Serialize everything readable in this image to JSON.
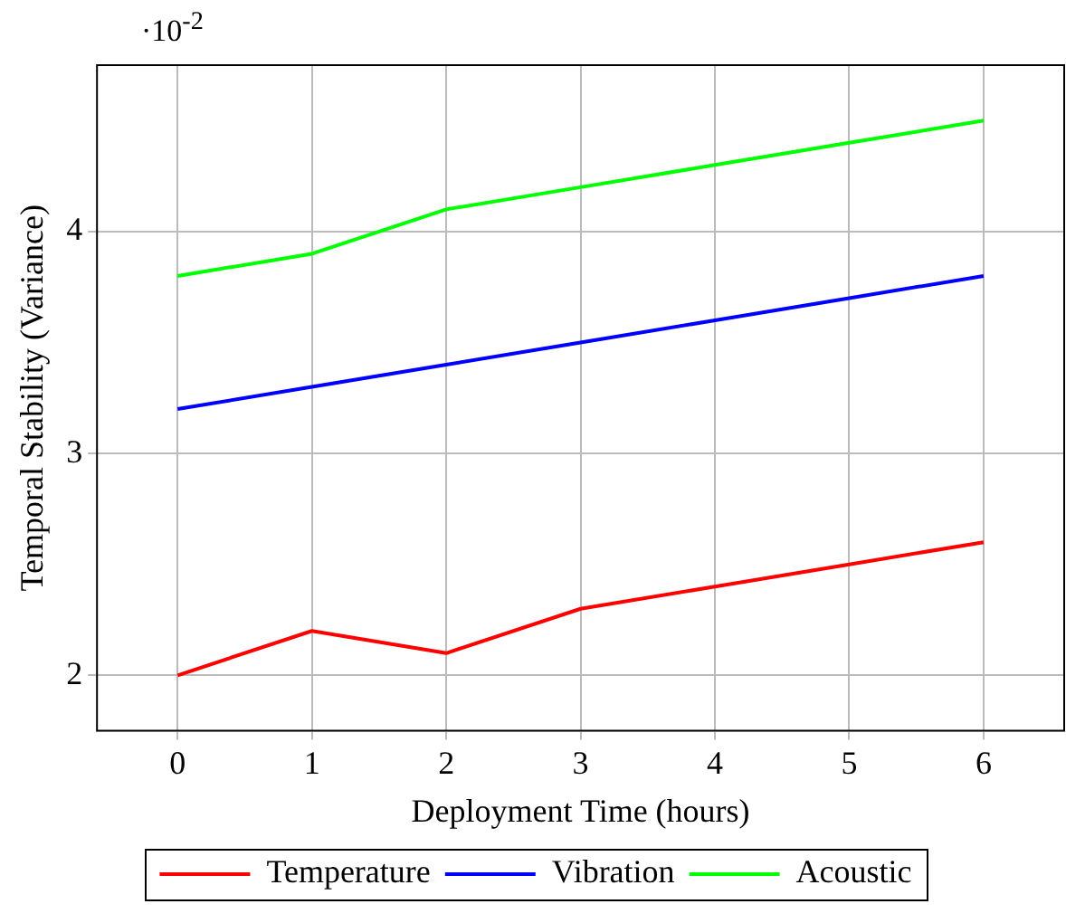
{
  "chart_data": {
    "type": "line",
    "xlabel": "Deployment Time (hours)",
    "ylabel": "Temporal Stability (Variance)",
    "annotations": [
      "·10$^{-2}$"
    ],
    "x": [
      0,
      1,
      2,
      3,
      4,
      5,
      6
    ],
    "series": [
      {
        "name": "Temperature",
        "color": "#ff0000",
        "values": [
          2.0,
          2.2,
          2.1,
          2.3,
          2.4,
          2.5,
          2.6
        ]
      },
      {
        "name": "Vibration",
        "color": "#0000ff",
        "values": [
          3.2,
          3.3,
          3.4,
          3.5,
          3.6,
          3.7,
          3.8
        ]
      },
      {
        "name": "Acoustic",
        "color": "#00ff00",
        "values": [
          3.8,
          3.9,
          4.1,
          4.2,
          4.3,
          4.4,
          4.5
        ]
      }
    ],
    "xlim": [
      -0.6,
      6.6
    ],
    "xticks": [
      0,
      1,
      2,
      3,
      4,
      5,
      6
    ],
    "ylim": [
      1.75,
      4.75
    ],
    "yticks": [
      2,
      3,
      4
    ],
    "grid": true,
    "legend": "bottom",
    "marker": "none",
    "line_style": "solid"
  }
}
